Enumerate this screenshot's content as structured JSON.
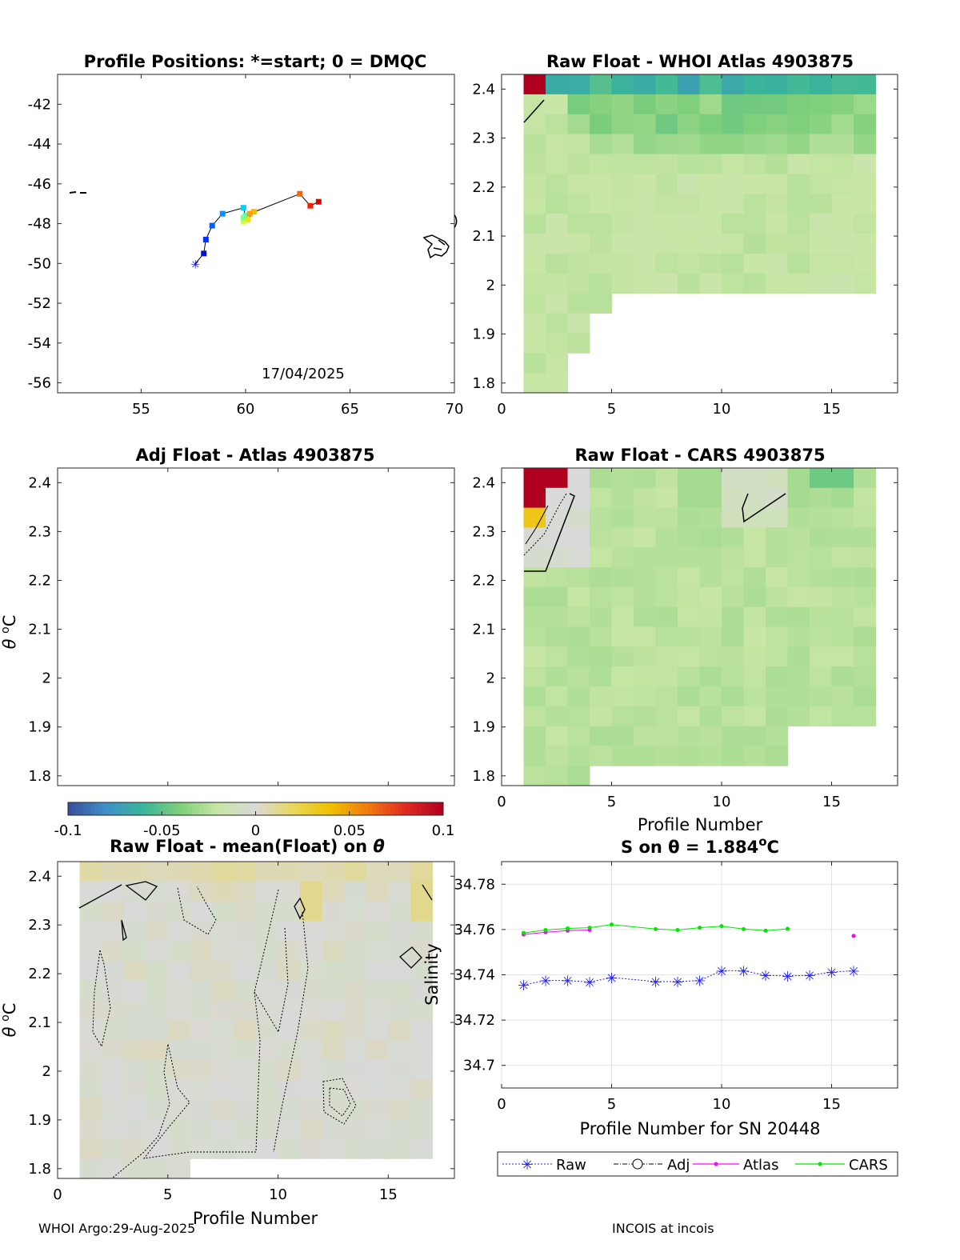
{
  "footer": {
    "left": "WHOI Argo:29-Aug-2025",
    "right": "INCOIS at incois"
  },
  "colors": {
    "raw": "#1f1fff",
    "atlas": "#ff00ff",
    "cars": "#00e600",
    "diverging_scale": [
      "#3a4d9a",
      "#3f8fc8",
      "#3ab59a",
      "#7fcf7a",
      "#c8e6a5",
      "#d9d9d9",
      "#e8d85a",
      "#f0c000",
      "#f07a10",
      "#e02a20",
      "#b00020"
    ]
  },
  "colorbar": {
    "range": [
      -0.1,
      0.1
    ],
    "tick_labels": [
      "-0.1",
      "-0.05",
      "0",
      "0.05",
      "0.1"
    ]
  },
  "chart_data": [
    {
      "id": "positions",
      "type": "scatter",
      "title": "Profile Positions: *=start; 0 = DMQC",
      "annotation": "17/04/2025",
      "xlim": [
        51,
        70
      ],
      "ylim": [
        -56.5,
        -40.5
      ],
      "xticks": [
        "55",
        "60",
        "65",
        "70"
      ],
      "yticks": [
        "-42",
        "-44",
        "-46",
        "-48",
        "-50",
        "-52",
        "-54",
        "-56"
      ],
      "track": [
        [
          57.6,
          -50.0
        ],
        [
          58.0,
          -49.5
        ],
        [
          58.1,
          -48.8
        ],
        [
          58.4,
          -48.1
        ],
        [
          58.9,
          -47.5
        ],
        [
          59.9,
          -47.2
        ],
        [
          60.0,
          -47.6
        ],
        [
          60.4,
          -47.4
        ],
        [
          60.1,
          -47.8
        ],
        [
          59.9,
          -47.9
        ],
        [
          59.9,
          -47.7
        ],
        [
          60.2,
          -47.5
        ],
        [
          62.6,
          -46.5
        ],
        [
          63.1,
          -47.1
        ],
        [
          63.5,
          -46.9
        ]
      ]
    },
    {
      "id": "raw_atlas",
      "type": "heatmap",
      "title": "Raw Float - WHOI Atlas  4903875",
      "xlim": [
        0,
        18
      ],
      "ylim": [
        1.78,
        2.43
      ],
      "xticks": [
        "0",
        "5",
        "10",
        "15"
      ],
      "yticks": [
        "2.4",
        "2.3",
        "2.2",
        "2.1",
        "2",
        "1.9",
        "1.8"
      ],
      "xlabel": "",
      "ylabel": ""
    },
    {
      "id": "adj_atlas",
      "type": "heatmap",
      "title": "Adj Float - Atlas  4903875",
      "xlim": [
        0,
        18
      ],
      "ylim": [
        1.78,
        2.43
      ],
      "yticks": [
        "2.4",
        "2.3",
        "2.2",
        "2.1",
        "2",
        "1.9",
        "1.8"
      ],
      "ylabel_main": "θ",
      "ylabel_sup": "o",
      "ylabel_unit": "C"
    },
    {
      "id": "raw_cars",
      "type": "heatmap",
      "title": "Raw Float - CARS  4903875",
      "xlim": [
        0,
        18
      ],
      "ylim": [
        1.78,
        2.43
      ],
      "xticks": [
        "0",
        "5",
        "10",
        "15"
      ],
      "yticks": [
        "2.4",
        "2.3",
        "2.2",
        "2.1",
        "2",
        "1.9",
        "1.8"
      ],
      "xlabel": "Profile Number"
    },
    {
      "id": "raw_mean",
      "type": "heatmap",
      "title": "Raw Float - mean(Float) on θ",
      "xlim": [
        0,
        18
      ],
      "ylim": [
        1.78,
        2.43
      ],
      "xticks": [
        "0",
        "5",
        "10",
        "15"
      ],
      "yticks": [
        "2.4",
        "2.3",
        "2.2",
        "2.1",
        "2",
        "1.9",
        "1.8"
      ],
      "xlabel": "Profile Number",
      "ylabel_main": "θ",
      "ylabel_sup": "o",
      "ylabel_unit": "C"
    },
    {
      "id": "salinity",
      "type": "line",
      "title_main": "S on θ = 1.884",
      "title_sup": "o",
      "title_unit": "C",
      "xlim": [
        0,
        18
      ],
      "ylim": [
        34.69,
        34.79
      ],
      "xticks": [
        "0",
        "5",
        "10",
        "15"
      ],
      "yticks": [
        "34.78",
        "34.76",
        "34.74",
        "34.72",
        "34.7"
      ],
      "xlabel": "Profile Number for SN 20448",
      "ylabel": "Salinity",
      "grid": true,
      "legend_position": "bottom",
      "series": [
        {
          "name": "Raw",
          "x": [
            1,
            2,
            3,
            4,
            5,
            7,
            8,
            9,
            10,
            11,
            12,
            13,
            14,
            15,
            16
          ],
          "y": [
            34.7355,
            34.7375,
            34.7375,
            34.7368,
            34.7388,
            34.737,
            34.737,
            34.7375,
            34.7418,
            34.7418,
            34.7398,
            34.7395,
            34.7398,
            34.7412,
            34.7418
          ]
        },
        {
          "name": "Adj",
          "x": [],
          "y": []
        },
        {
          "name": "Atlas",
          "x": [
            1,
            2,
            3,
            4,
            16
          ],
          "y": [
            34.7578,
            34.7588,
            34.7595,
            34.7598,
            34.7572
          ]
        },
        {
          "name": "CARS",
          "x": [
            1,
            2,
            3,
            4,
            5,
            7,
            8,
            9,
            10,
            11,
            12,
            13
          ],
          "y": [
            34.7585,
            34.7598,
            34.7605,
            34.7608,
            34.7622,
            34.7602,
            34.7598,
            34.7608,
            34.7615,
            34.7602,
            34.7595,
            34.7603
          ]
        }
      ]
    }
  ]
}
